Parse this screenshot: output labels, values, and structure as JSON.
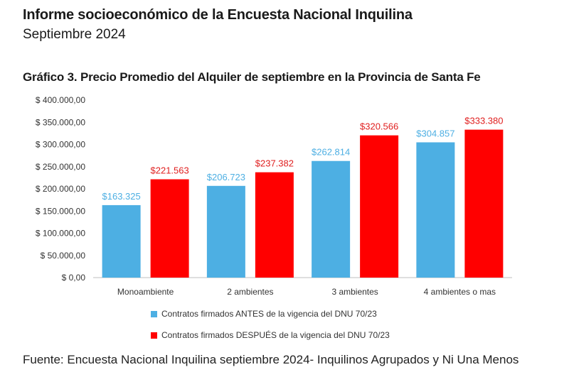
{
  "header": {
    "title": "Informe socioeconómico de la Encuesta Nacional Inquilina",
    "subtitle": "Septiembre 2024"
  },
  "source": "Fuente: Encuesta Nacional Inquilina septiembre 2024- Inquilinos Agrupados y Ni Una Menos",
  "colors": {
    "series_before": "#4DAFE3",
    "series_after": "#FF0000",
    "axis": "#bfbfbf"
  },
  "chart_data": {
    "type": "bar",
    "title": "Gráfico 3. Precio Promedio del Alquiler de septiembre en la Provincia de Santa Fe",
    "categories": [
      "Monoambiente",
      "2 ambientes",
      "3 ambientes",
      "4 ambientes o mas"
    ],
    "series": [
      {
        "name": "Contratos firmados ANTES de la vigencia del DNU 70/23",
        "values": [
          163325,
          206723,
          262814,
          304857
        ],
        "labels": [
          "$163.325",
          "$206.723",
          "$262.814",
          "$304.857"
        ]
      },
      {
        "name": "Contratos firmados DESPUÉS de la vigencia del DNU 70/23",
        "values": [
          221563,
          237382,
          320566,
          333380
        ],
        "labels": [
          "$221.563",
          "$237.382",
          "$320.566",
          "$333.380"
        ]
      }
    ],
    "ylim": [
      0,
      400000
    ],
    "yticks": [
      0,
      50000,
      100000,
      150000,
      200000,
      250000,
      300000,
      350000,
      400000
    ],
    "ytick_labels": [
      "$ 0,00",
      "$ 50.000,00",
      "$ 100.000,00",
      "$ 150.000,00",
      "$ 200.000,00",
      "$ 250.000,00",
      "$ 300.000,00",
      "$ 350.000,00",
      "$ 400.000,00"
    ],
    "grid": false,
    "legend_position": "bottom"
  }
}
